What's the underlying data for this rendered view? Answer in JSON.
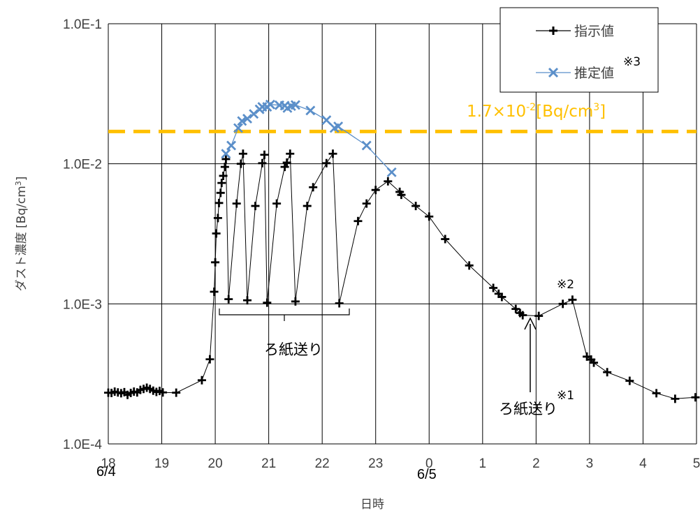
{
  "chart_data": {
    "type": "line",
    "title": "",
    "xlabel": "日時",
    "ylabel": "ダスト濃度 [Bq/cm3]",
    "ylabel_parts": {
      "main": "ダスト濃度 [Bq/cm",
      "sup": "3",
      "end": "]"
    },
    "y_scale": "log",
    "ylim": [
      0.0001,
      0.1
    ],
    "xlim": [
      "6/4 18:00",
      "6/5 05:00"
    ],
    "x_unit": "hours (6/4 18:00 to 6/5 05:00)",
    "grid": true,
    "legend_position": "top-right",
    "x_tick_labels": [
      "18",
      "19",
      "20",
      "21",
      "22",
      "23",
      "0",
      "1",
      "2",
      "3",
      "4",
      "5"
    ],
    "y_tick_labels": [
      "1.0E-4",
      "1.0E-3",
      "1.0E-2",
      "1.0E-1"
    ],
    "date_labels": [
      "6/4",
      "6/5"
    ],
    "colors": {
      "measured": "#000000",
      "estimated": "#5B8FC9",
      "threshold": "#FFC000",
      "grid": "#000000"
    },
    "series": [
      {
        "name": "指示値",
        "marker": "plus",
        "points": [
          [
            18.0,
            0.000232
          ],
          [
            18.06,
            0.000231
          ],
          [
            18.12,
            0.000236
          ],
          [
            18.18,
            0.000233
          ],
          [
            18.24,
            0.00023
          ],
          [
            18.3,
            0.000234
          ],
          [
            18.36,
            0.000224
          ],
          [
            18.42,
            0.000231
          ],
          [
            18.48,
            0.000236
          ],
          [
            18.54,
            0.000233
          ],
          [
            18.6,
            0.000243
          ],
          [
            18.66,
            0.000247
          ],
          [
            18.72,
            0.000252
          ],
          [
            18.78,
            0.000247
          ],
          [
            18.84,
            0.00024
          ],
          [
            18.9,
            0.000235
          ],
          [
            18.96,
            0.000239
          ],
          [
            19.02,
            0.000233
          ],
          [
            19.27,
            0.000232
          ],
          [
            19.75,
            0.000285
          ],
          [
            19.9,
            0.000402
          ],
          [
            19.98,
            0.00122
          ],
          [
            20.0,
            0.00198
          ],
          [
            20.02,
            0.00318
          ],
          [
            20.05,
            0.0041
          ],
          [
            20.07,
            0.00525
          ],
          [
            20.1,
            0.0062
          ],
          [
            20.12,
            0.0073
          ],
          [
            20.15,
            0.0082
          ],
          [
            20.18,
            0.0095
          ],
          [
            20.2,
            0.0108
          ],
          [
            20.25,
            0.00108
          ],
          [
            20.4,
            0.0052
          ],
          [
            20.48,
            0.01
          ],
          [
            20.52,
            0.0118
          ],
          [
            20.6,
            0.00106
          ],
          [
            20.75,
            0.005
          ],
          [
            20.88,
            0.0101
          ],
          [
            20.92,
            0.0116
          ],
          [
            20.97,
            0.00102
          ],
          [
            21.15,
            0.0052
          ],
          [
            21.3,
            0.0095
          ],
          [
            21.34,
            0.0102
          ],
          [
            21.4,
            0.0118
          ],
          [
            21.5,
            0.00104
          ],
          [
            21.72,
            0.005
          ],
          [
            21.83,
            0.0068
          ],
          [
            22.08,
            0.0101
          ],
          [
            22.2,
            0.0118
          ],
          [
            22.32,
            0.00101
          ],
          [
            22.67,
            0.0039
          ],
          [
            22.83,
            0.0052
          ],
          [
            23.0,
            0.0065
          ],
          [
            23.23,
            0.0075
          ],
          [
            23.45,
            0.0063
          ],
          [
            23.48,
            0.006
          ],
          [
            23.75,
            0.005
          ],
          [
            24.0,
            0.0042
          ],
          [
            24.3,
            0.0029
          ],
          [
            24.75,
            0.00188
          ],
          [
            25.2,
            0.0013
          ],
          [
            25.3,
            0.00118
          ],
          [
            25.36,
            0.00112
          ],
          [
            25.62,
            0.00092
          ],
          [
            25.7,
            0.00086
          ],
          [
            25.75,
            0.00083
          ],
          [
            26.05,
            0.00082
          ],
          [
            26.5,
            0.001
          ],
          [
            26.68,
            0.00107
          ],
          [
            26.95,
            0.00042
          ],
          [
            27.03,
            0.0004
          ],
          [
            27.08,
            0.00038
          ],
          [
            27.33,
            0.000325
          ],
          [
            27.75,
            0.000282
          ],
          [
            28.25,
            0.00023
          ],
          [
            28.6,
            0.00021
          ],
          [
            28.98,
            0.000215
          ]
        ]
      },
      {
        "name": "推定値",
        "name_note": "※3",
        "marker": "x",
        "points": [
          [
            20.2,
            0.0118
          ],
          [
            20.3,
            0.0135
          ],
          [
            20.43,
            0.018
          ],
          [
            20.5,
            0.0202
          ],
          [
            20.6,
            0.021
          ],
          [
            20.72,
            0.0227
          ],
          [
            20.83,
            0.0245
          ],
          [
            20.88,
            0.0255
          ],
          [
            20.97,
            0.0255
          ],
          [
            21.03,
            0.0265
          ],
          [
            21.2,
            0.0262
          ],
          [
            21.3,
            0.026
          ],
          [
            21.35,
            0.025
          ],
          [
            21.42,
            0.0258
          ],
          [
            21.5,
            0.0263
          ],
          [
            21.78,
            0.024
          ],
          [
            22.08,
            0.0205
          ],
          [
            22.23,
            0.018
          ],
          [
            22.3,
            0.0185
          ],
          [
            22.83,
            0.0135
          ],
          [
            23.3,
            0.0087
          ]
        ]
      }
    ],
    "threshold": {
      "value": 0.017,
      "label_base": "1.7×10",
      "label_exp": "-2",
      "label_unit": "[Bq/cm",
      "label_sup": "3",
      "label_end": "]"
    },
    "annotations": {
      "filter_feed_bracket": "ろ紙送り",
      "filter_feed_arrow": "ろ紙送り",
      "note1": "※1",
      "note2": "※2"
    }
  }
}
